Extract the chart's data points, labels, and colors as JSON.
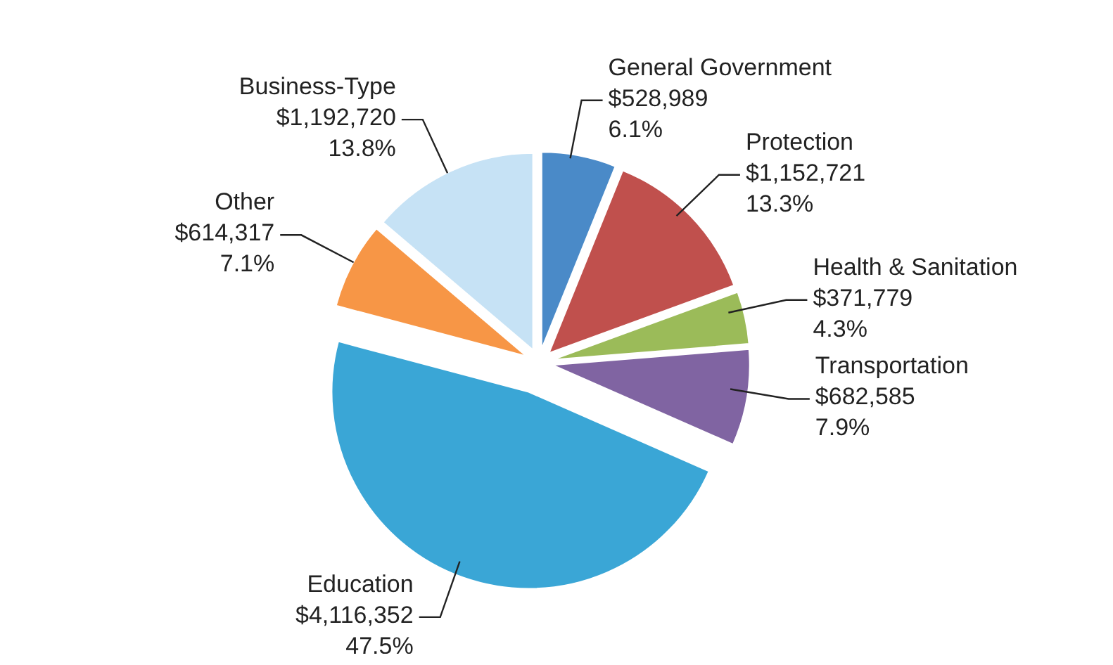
{
  "chart_data": {
    "type": "pie",
    "categories": [
      "General Government",
      "Protection",
      "Health & Sanitation",
      "Transportation",
      "Education",
      "Other",
      "Business-Type"
    ],
    "values": [
      528989,
      1152721,
      371779,
      682585,
      4116352,
      614317,
      1192720
    ],
    "colors": [
      "#4a8ac8",
      "#c0504d",
      "#9bbb59",
      "#8064a2",
      "#3aa6d6",
      "#f79646",
      "#c6e2f5"
    ],
    "value_labels": [
      "$528,989\n6.1%",
      "$1,152,721\n13.3%",
      "$371,779\n4.3%",
      "$682,585\n7.9%",
      "$4,116,352\n47.5%",
      "$614,317\n7.1%",
      "$1,192,720\n13.8%"
    ]
  }
}
